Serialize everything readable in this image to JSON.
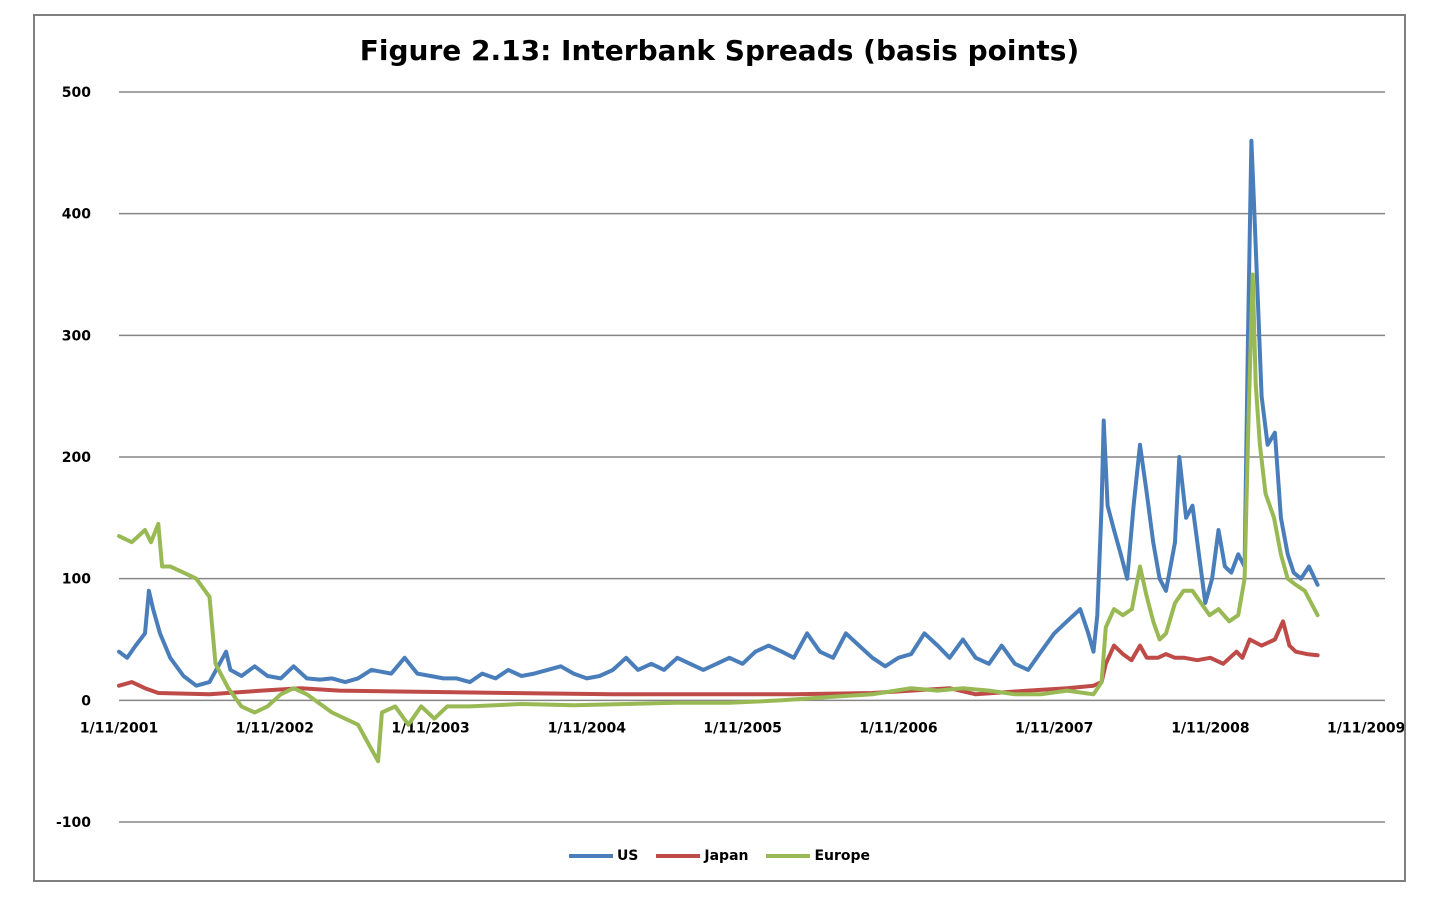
{
  "colors": {
    "us": "#4a7ebb",
    "japan": "#be4b48",
    "europe": "#98b954",
    "grid": "#868686"
  },
  "chart_data": {
    "type": "line",
    "title": "Figure 2.13: Interbank Spreads (basis points)",
    "xlabel": "",
    "ylabel": "",
    "ylim": [
      -100,
      500
    ],
    "yticks": [
      -100,
      0,
      100,
      200,
      300,
      400,
      500
    ],
    "ytick_labels": [
      "-100",
      "0",
      "100",
      "200",
      "300",
      "400",
      "500"
    ],
    "xlim": [
      "2001-11-01",
      "2009-12-15"
    ],
    "x_ticks": [
      "2001-11-01",
      "2002-11-01",
      "2003-11-01",
      "2004-11-01",
      "2005-11-01",
      "2006-11-01",
      "2007-11-01",
      "2008-11-01",
      "2009-11-01"
    ],
    "x_tick_labels": [
      "1/11/2001",
      "1/11/2002",
      "1/11/2003",
      "1/11/2004",
      "1/11/2005",
      "1/11/2006",
      "1/11/2007",
      "1/11/2008",
      "1/11/2009"
    ],
    "grid": true,
    "legend_position": "bottom",
    "series": [
      {
        "name": "US",
        "color": "#4a7ebb",
        "points": [
          [
            "2001-11-01",
            40
          ],
          [
            "2001-11-20",
            35
          ],
          [
            "2001-12-10",
            45
          ],
          [
            "2002-01-01",
            55
          ],
          [
            "2002-01-10",
            90
          ],
          [
            "2002-01-20",
            75
          ],
          [
            "2002-02-05",
            55
          ],
          [
            "2002-03-01",
            35
          ],
          [
            "2002-04-01",
            20
          ],
          [
            "2002-05-01",
            12
          ],
          [
            "2002-06-01",
            15
          ],
          [
            "2002-07-10",
            40
          ],
          [
            "2002-07-20",
            25
          ],
          [
            "2002-08-15",
            20
          ],
          [
            "2002-09-15",
            28
          ],
          [
            "2002-10-15",
            20
          ],
          [
            "2002-11-15",
            18
          ],
          [
            "2002-12-15",
            28
          ],
          [
            "2003-01-15",
            18
          ],
          [
            "2003-02-15",
            17
          ],
          [
            "2003-03-15",
            18
          ],
          [
            "2003-04-15",
            15
          ],
          [
            "2003-05-15",
            18
          ],
          [
            "2003-06-15",
            25
          ],
          [
            "2003-08-01",
            22
          ],
          [
            "2003-09-01",
            35
          ],
          [
            "2003-10-01",
            22
          ],
          [
            "2003-11-01",
            20
          ],
          [
            "2003-12-01",
            18
          ],
          [
            "2004-01-01",
            18
          ],
          [
            "2004-02-01",
            15
          ],
          [
            "2004-03-01",
            22
          ],
          [
            "2004-04-01",
            18
          ],
          [
            "2004-05-01",
            25
          ],
          [
            "2004-06-01",
            20
          ],
          [
            "2004-07-01",
            22
          ],
          [
            "2004-08-01",
            25
          ],
          [
            "2004-09-01",
            28
          ],
          [
            "2004-10-01",
            22
          ],
          [
            "2004-11-01",
            18
          ],
          [
            "2004-12-01",
            20
          ],
          [
            "2005-01-01",
            25
          ],
          [
            "2005-02-01",
            35
          ],
          [
            "2005-03-01",
            25
          ],
          [
            "2005-04-01",
            30
          ],
          [
            "2005-05-01",
            25
          ],
          [
            "2005-06-01",
            35
          ],
          [
            "2005-07-01",
            30
          ],
          [
            "2005-08-01",
            25
          ],
          [
            "2005-09-01",
            30
          ],
          [
            "2005-10-01",
            35
          ],
          [
            "2005-11-01",
            30
          ],
          [
            "2005-12-01",
            40
          ],
          [
            "2006-01-01",
            45
          ],
          [
            "2006-02-01",
            40
          ],
          [
            "2006-03-01",
            35
          ],
          [
            "2006-04-01",
            55
          ],
          [
            "2006-05-01",
            40
          ],
          [
            "2006-06-01",
            35
          ],
          [
            "2006-07-01",
            55
          ],
          [
            "2006-08-01",
            45
          ],
          [
            "2006-09-01",
            35
          ],
          [
            "2006-10-01",
            28
          ],
          [
            "2006-11-01",
            35
          ],
          [
            "2006-12-01",
            38
          ],
          [
            "2007-01-01",
            55
          ],
          [
            "2007-02-01",
            45
          ],
          [
            "2007-03-01",
            35
          ],
          [
            "2007-04-01",
            50
          ],
          [
            "2007-05-01",
            35
          ],
          [
            "2007-06-01",
            30
          ],
          [
            "2007-07-01",
            45
          ],
          [
            "2007-08-01",
            30
          ],
          [
            "2007-09-01",
            25
          ],
          [
            "2007-10-01",
            40
          ],
          [
            "2007-11-01",
            55
          ],
          [
            "2007-12-01",
            65
          ],
          [
            "2008-01-01",
            75
          ],
          [
            "2008-01-20",
            55
          ],
          [
            "2008-02-01",
            40
          ],
          [
            "2008-02-10",
            70
          ],
          [
            "2008-02-20",
            160
          ],
          [
            "2008-02-25",
            230
          ],
          [
            "2008-03-05",
            160
          ],
          [
            "2008-03-20",
            140
          ],
          [
            "2008-04-05",
            120
          ],
          [
            "2008-04-20",
            100
          ],
          [
            "2008-05-05",
            160
          ],
          [
            "2008-05-20",
            210
          ],
          [
            "2008-06-05",
            170
          ],
          [
            "2008-06-20",
            130
          ],
          [
            "2008-07-05",
            100
          ],
          [
            "2008-07-20",
            90
          ],
          [
            "2008-08-10",
            130
          ],
          [
            "2008-08-20",
            200
          ],
          [
            "2008-09-05",
            150
          ],
          [
            "2008-09-20",
            160
          ],
          [
            "2008-10-05",
            120
          ],
          [
            "2008-10-20",
            80
          ],
          [
            "2008-11-05",
            100
          ],
          [
            "2008-11-20",
            140
          ],
          [
            "2008-12-05",
            110
          ],
          [
            "2008-12-20",
            105
          ],
          [
            "2009-01-05",
            120
          ],
          [
            "2009-01-20",
            110
          ],
          [
            "2009-01-28",
            300
          ],
          [
            "2009-02-05",
            460
          ],
          [
            "2009-02-12",
            400
          ],
          [
            "2009-02-20",
            330
          ],
          [
            "2009-03-01",
            250
          ],
          [
            "2009-03-15",
            210
          ],
          [
            "2009-04-01",
            220
          ],
          [
            "2009-04-15",
            150
          ],
          [
            "2009-05-01",
            120
          ],
          [
            "2009-05-15",
            105
          ],
          [
            "2009-06-01",
            100
          ],
          [
            "2009-06-20",
            110
          ],
          [
            "2009-07-10",
            95
          ]
        ]
      },
      {
        "name": "Japan",
        "color": "#be4b48",
        "points": [
          [
            "2001-11-01",
            12
          ],
          [
            "2001-12-01",
            15
          ],
          [
            "2002-01-01",
            10
          ],
          [
            "2002-02-01",
            6
          ],
          [
            "2002-06-01",
            5
          ],
          [
            "2002-10-01",
            8
          ],
          [
            "2003-01-01",
            10
          ],
          [
            "2003-04-01",
            8
          ],
          [
            "2003-10-01",
            7
          ],
          [
            "2004-05-01",
            6
          ],
          [
            "2005-01-01",
            5
          ],
          [
            "2005-08-01",
            5
          ],
          [
            "2006-03-01",
            5
          ],
          [
            "2006-09-01",
            6
          ],
          [
            "2006-12-01",
            8
          ],
          [
            "2007-03-01",
            10
          ],
          [
            "2007-05-01",
            5
          ],
          [
            "2007-09-01",
            8
          ],
          [
            "2007-12-01",
            10
          ],
          [
            "2008-02-01",
            12
          ],
          [
            "2008-02-20",
            15
          ],
          [
            "2008-03-01",
            30
          ],
          [
            "2008-03-20",
            45
          ],
          [
            "2008-04-10",
            38
          ],
          [
            "2008-04-30",
            33
          ],
          [
            "2008-05-20",
            45
          ],
          [
            "2008-06-05",
            35
          ],
          [
            "2008-07-01",
            35
          ],
          [
            "2008-07-20",
            38
          ],
          [
            "2008-08-10",
            35
          ],
          [
            "2008-09-01",
            35
          ],
          [
            "2008-10-01",
            33
          ],
          [
            "2008-11-01",
            35
          ],
          [
            "2008-12-01",
            30
          ],
          [
            "2009-01-01",
            40
          ],
          [
            "2009-01-15",
            35
          ],
          [
            "2009-02-01",
            50
          ],
          [
            "2009-03-01",
            45
          ],
          [
            "2009-04-01",
            50
          ],
          [
            "2009-04-20",
            65
          ],
          [
            "2009-05-05",
            45
          ],
          [
            "2009-05-20",
            40
          ],
          [
            "2009-06-15",
            38
          ],
          [
            "2009-07-10",
            37
          ]
        ]
      },
      {
        "name": "Europe",
        "color": "#98b954",
        "points": [
          [
            "2001-11-01",
            135
          ],
          [
            "2001-12-01",
            130
          ],
          [
            "2002-01-01",
            140
          ],
          [
            "2002-01-15",
            130
          ],
          [
            "2002-02-01",
            145
          ],
          [
            "2002-02-10",
            110
          ],
          [
            "2002-03-01",
            110
          ],
          [
            "2002-04-01",
            105
          ],
          [
            "2002-05-01",
            100
          ],
          [
            "2002-06-01",
            85
          ],
          [
            "2002-06-15",
            30
          ],
          [
            "2002-07-15",
            10
          ],
          [
            "2002-08-15",
            -5
          ],
          [
            "2002-09-15",
            -10
          ],
          [
            "2002-10-15",
            -5
          ],
          [
            "2002-11-15",
            5
          ],
          [
            "2002-12-15",
            10
          ],
          [
            "2003-01-15",
            5
          ],
          [
            "2003-03-15",
            -10
          ],
          [
            "2003-05-15",
            -20
          ],
          [
            "2003-06-15",
            -40
          ],
          [
            "2003-07-01",
            -50
          ],
          [
            "2003-07-10",
            -10
          ],
          [
            "2003-08-10",
            -5
          ],
          [
            "2003-09-10",
            -20
          ],
          [
            "2003-10-10",
            -5
          ],
          [
            "2003-11-10",
            -15
          ],
          [
            "2003-12-10",
            -5
          ],
          [
            "2004-02-01",
            -5
          ],
          [
            "2004-06-01",
            -3
          ],
          [
            "2004-10-01",
            -4
          ],
          [
            "2005-02-01",
            -3
          ],
          [
            "2005-06-01",
            -2
          ],
          [
            "2005-10-01",
            -2
          ],
          [
            "2006-02-01",
            0
          ],
          [
            "2006-06-01",
            3
          ],
          [
            "2006-09-01",
            5
          ],
          [
            "2006-12-01",
            10
          ],
          [
            "2007-02-01",
            8
          ],
          [
            "2007-04-01",
            10
          ],
          [
            "2007-06-01",
            8
          ],
          [
            "2007-08-01",
            5
          ],
          [
            "2007-10-01",
            5
          ],
          [
            "2007-12-01",
            8
          ],
          [
            "2008-02-01",
            5
          ],
          [
            "2008-02-20",
            15
          ],
          [
            "2008-03-01",
            60
          ],
          [
            "2008-03-20",
            75
          ],
          [
            "2008-04-10",
            70
          ],
          [
            "2008-05-01",
            75
          ],
          [
            "2008-05-20",
            110
          ],
          [
            "2008-06-05",
            85
          ],
          [
            "2008-06-20",
            65
          ],
          [
            "2008-07-05",
            50
          ],
          [
            "2008-07-20",
            55
          ],
          [
            "2008-08-10",
            80
          ],
          [
            "2008-08-30",
            90
          ],
          [
            "2008-09-20",
            90
          ],
          [
            "2008-10-10",
            80
          ],
          [
            "2008-10-30",
            70
          ],
          [
            "2008-11-20",
            75
          ],
          [
            "2008-12-15",
            65
          ],
          [
            "2009-01-05",
            70
          ],
          [
            "2009-01-20",
            100
          ],
          [
            "2009-01-30",
            240
          ],
          [
            "2009-02-08",
            350
          ],
          [
            "2009-02-15",
            260
          ],
          [
            "2009-02-25",
            210
          ],
          [
            "2009-03-10",
            170
          ],
          [
            "2009-03-30",
            150
          ],
          [
            "2009-04-15",
            120
          ],
          [
            "2009-05-01",
            100
          ],
          [
            "2009-05-20",
            95
          ],
          [
            "2009-06-10",
            90
          ],
          [
            "2009-06-25",
            80
          ],
          [
            "2009-07-10",
            70
          ]
        ]
      }
    ]
  }
}
